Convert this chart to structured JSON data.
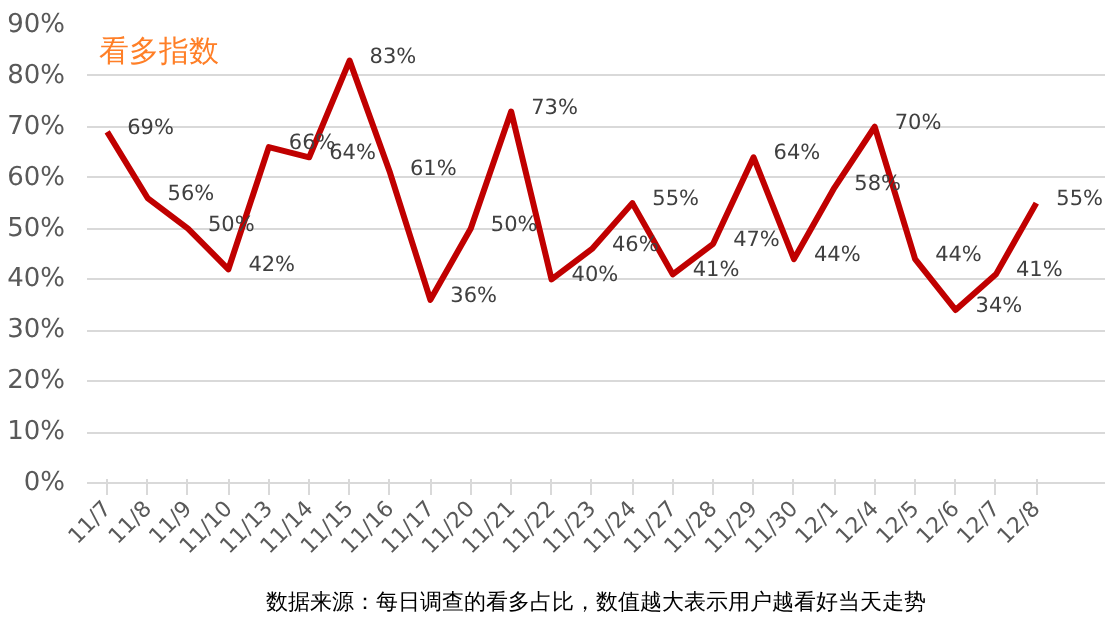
{
  "chart_data": {
    "type": "line",
    "title": "看多指数",
    "categories": [
      "11/7",
      "11/8",
      "11/9",
      "11/10",
      "11/13",
      "11/14",
      "11/15",
      "11/16",
      "11/17",
      "11/20",
      "11/21",
      "11/22",
      "11/23",
      "11/24",
      "11/27",
      "11/28",
      "11/29",
      "11/30",
      "12/1",
      "12/4",
      "12/5",
      "12/6",
      "12/7",
      "12/8"
    ],
    "series": [
      {
        "color": "#c00000",
        "values": [
          69,
          56,
          50,
          42,
          66,
          64,
          83,
          61,
          36,
          50,
          73,
          40,
          46,
          55,
          41,
          47,
          64,
          44,
          58,
          70,
          44,
          34,
          41,
          55
        ]
      }
    ],
    "value_labels": [
      "69%",
      "56%",
      "50%",
      "42%",
      "66%",
      "64%",
      "83%",
      "61%",
      "36%",
      "50%",
      "73%",
      "40%",
      "46%",
      "55%",
      "41%",
      "47%",
      "64%",
      "44%",
      "58%",
      "70%",
      "44%",
      "34%",
      "41%",
      "55%"
    ],
    "ylim": [
      0,
      90
    ],
    "yticks": [
      {
        "value": 0,
        "label": "0%"
      },
      {
        "value": 10,
        "label": "10%"
      },
      {
        "value": 20,
        "label": "20%"
      },
      {
        "value": 30,
        "label": "30%"
      },
      {
        "value": 40,
        "label": "40%"
      },
      {
        "value": 50,
        "label": "50%"
      },
      {
        "value": 60,
        "label": "60%"
      },
      {
        "value": 70,
        "label": "70%"
      },
      {
        "value": 80,
        "label": "80%"
      },
      {
        "value": 90,
        "label": "90%"
      }
    ],
    "grid": "y",
    "marker": "none",
    "line_style": "solid",
    "annotations": [
      "数据来源：每日调查的看多占比，数值越大表示用户越看好当天走势"
    ]
  }
}
